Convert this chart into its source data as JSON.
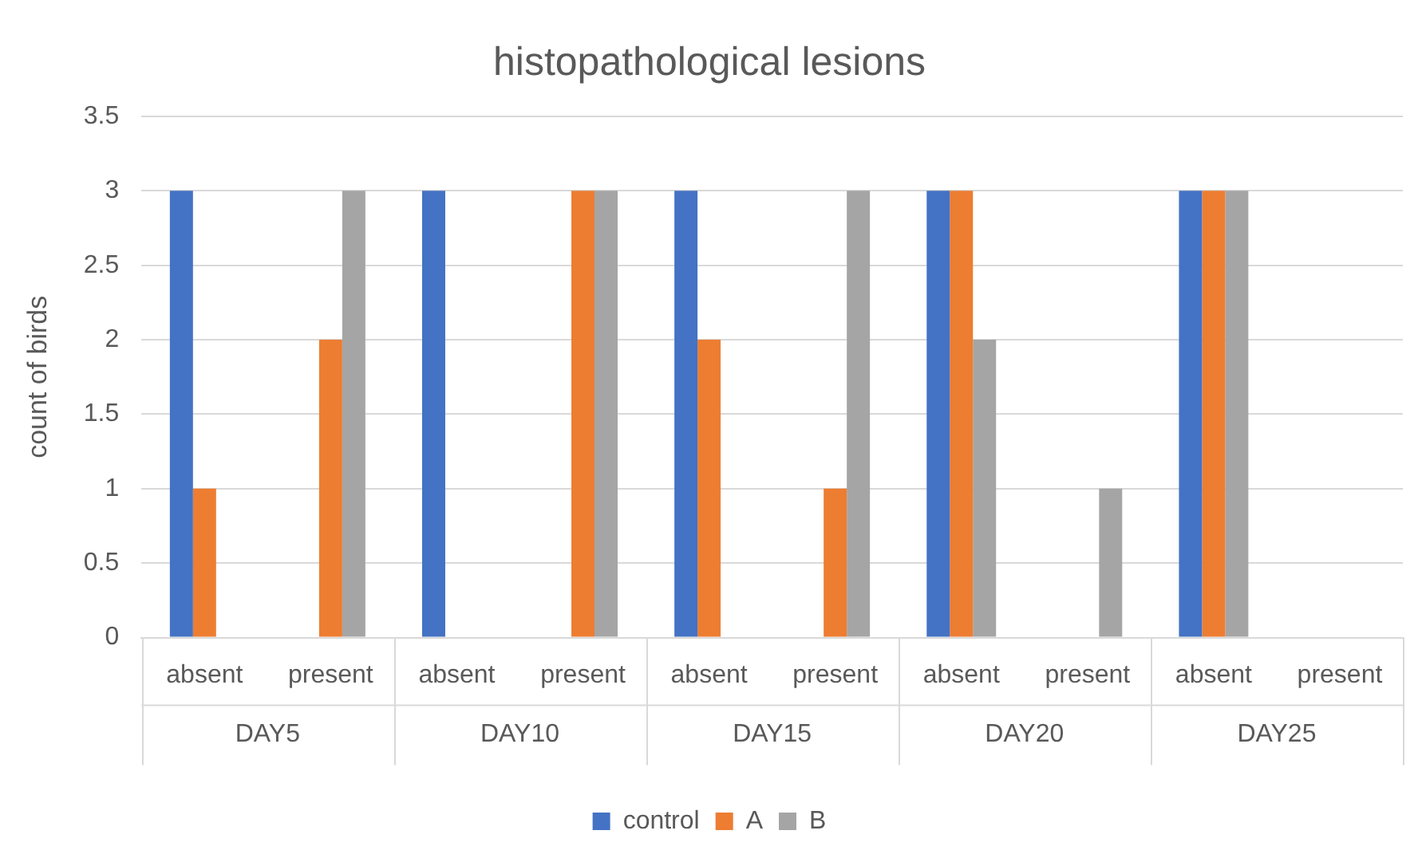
{
  "chart_data": {
    "type": "bar",
    "title": "histopathological lesions",
    "ylabel": "count of birds",
    "categories": [
      "absent",
      "present",
      "absent",
      "present",
      "absent",
      "present",
      "absent",
      "present",
      "absent",
      "present"
    ],
    "annotations": [
      "DAY5",
      "DAY10",
      "DAY15",
      "DAY20",
      "DAY25"
    ],
    "series": [
      {
        "name": "control",
        "color": "#4472c4",
        "values": [
          3,
          0,
          3,
          0,
          3,
          0,
          3,
          0,
          3,
          0
        ]
      },
      {
        "name": "A",
        "color": "#ed7d31",
        "values": [
          1,
          2,
          0,
          3,
          2,
          1,
          3,
          0,
          3,
          0
        ]
      },
      {
        "name": "B",
        "color": "#a5a5a5",
        "values": [
          0,
          3,
          0,
          3,
          0,
          3,
          2,
          1,
          3,
          0
        ]
      }
    ],
    "ylim": [
      0,
      3.5
    ],
    "yticks": [
      0,
      0.5,
      1,
      1.5,
      2,
      2.5,
      3,
      3.5
    ],
    "grid": "y",
    "legend": "bottom"
  }
}
